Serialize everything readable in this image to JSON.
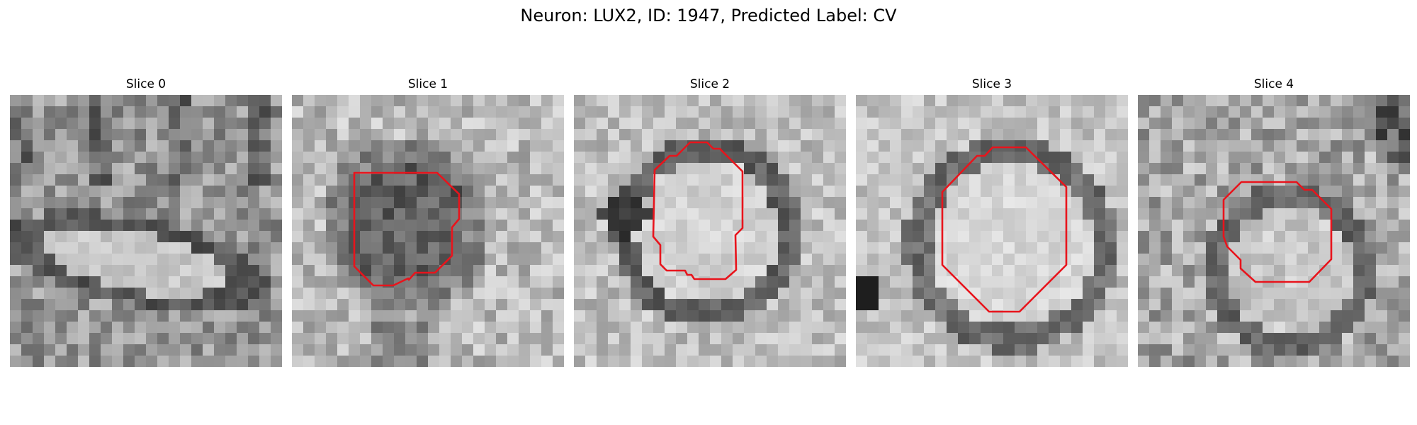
{
  "figure": {
    "title": "Neuron: LUX2, ID: 1947, Predicted Label: CV"
  },
  "contour_color": "#e8141c",
  "colormap": "grayscale",
  "panels": [
    {
      "title": "Slice 0",
      "has_contour": false
    },
    {
      "title": "Slice 1",
      "has_contour": true
    },
    {
      "title": "Slice 2",
      "has_contour": true
    },
    {
      "title": "Slice 3",
      "has_contour": true
    },
    {
      "title": "Slice 4",
      "has_contour": true
    }
  ]
}
